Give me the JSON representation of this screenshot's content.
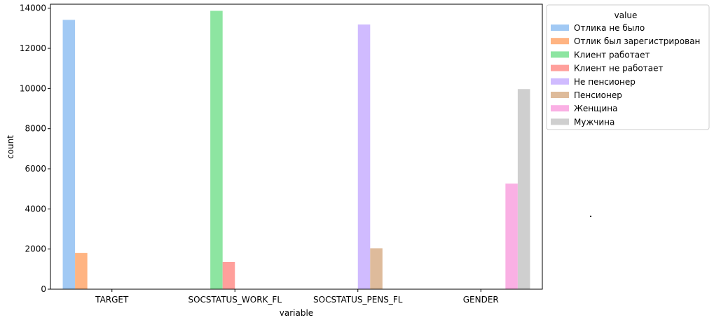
{
  "chart_data": {
    "type": "bar",
    "xlabel": "variable",
    "ylabel": "count",
    "ylim": [
      0,
      14200
    ],
    "yticks": [
      0,
      2000,
      4000,
      6000,
      8000,
      10000,
      12000,
      14000
    ],
    "categories": [
      "TARGET",
      "SOCSTATUS_WORK_FL",
      "SOCSTATUS_PENS_FL",
      "GENDER"
    ],
    "legend": {
      "title": "value",
      "placement": "outside-right"
    },
    "series": [
      {
        "name": "Отлика не было",
        "color": "#a1c9f4",
        "values": [
          13420,
          null,
          null,
          null
        ]
      },
      {
        "name": "Отлик был зарегистрирован",
        "color": "#ffb482",
        "values": [
          1810,
          null,
          null,
          null
        ]
      },
      {
        "name": "Клиент работает",
        "color": "#8de5a1",
        "values": [
          null,
          13870,
          null,
          null
        ]
      },
      {
        "name": "Клиент не работает",
        "color": "#ff9f9b",
        "values": [
          null,
          1360,
          null,
          null
        ]
      },
      {
        "name": "Не пенсионер",
        "color": "#d0bbff",
        "values": [
          null,
          null,
          13190,
          null
        ]
      },
      {
        "name": "Пенсионер",
        "color": "#debb9b",
        "values": [
          null,
          null,
          2040,
          null
        ]
      },
      {
        "name": "Женщина",
        "color": "#fab0e4",
        "values": [
          null,
          null,
          null,
          5260
        ]
      },
      {
        "name": "Мужчина",
        "color": "#cfcfcf",
        "values": [
          null,
          null,
          null,
          9970
        ]
      }
    ]
  }
}
